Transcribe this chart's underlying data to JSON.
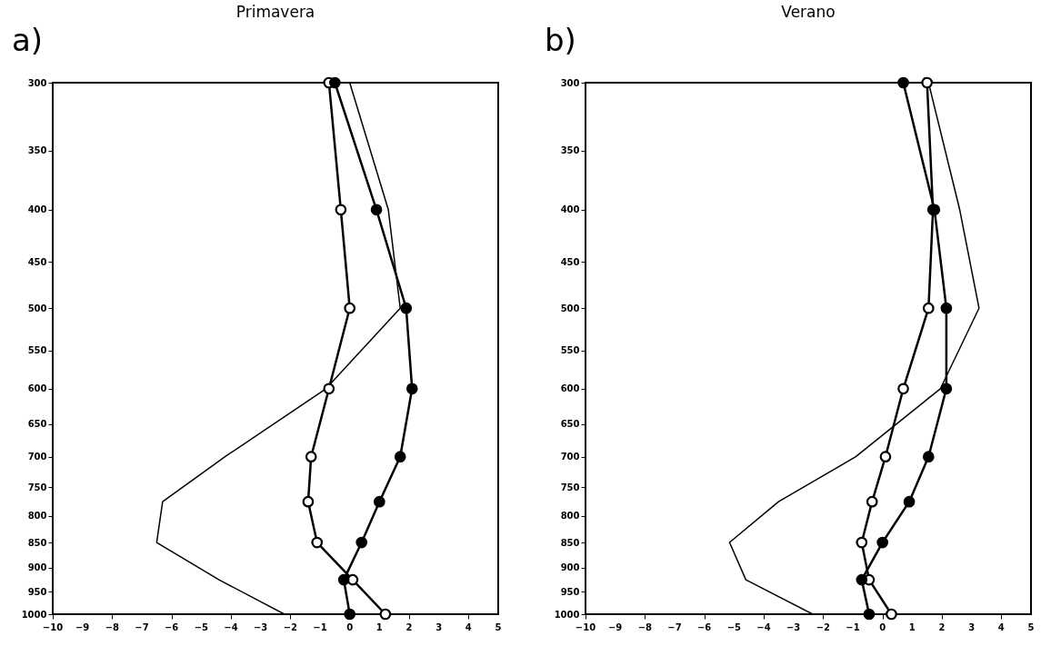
{
  "chart_data": [
    {
      "type": "line",
      "title": "a)",
      "subtitle": "Primavera",
      "series": [
        {
          "color": "#000000",
          "marker": "circle",
          "x": [
            -0.5,
            0.9,
            1.9,
            2.1,
            1.7,
            1.0,
            0.4,
            -0.2,
            0.0
          ],
          "values": [
            300,
            400,
            500,
            600,
            700,
            775,
            850,
            925,
            1000
          ]
        },
        {
          "color": "#000000",
          "marker": "circle",
          "x": [
            -0.7,
            -0.3,
            0.0,
            -0.7,
            -1.3,
            -1.4,
            -1.1,
            0.1,
            1.2
          ],
          "values": [
            300,
            400,
            500,
            600,
            700,
            775,
            850,
            925,
            1000
          ]
        },
        {
          "color": "#000000",
          "marker": "none",
          "x": [
            0.0,
            1.3,
            1.7,
            -0.8,
            -4.2,
            -6.3,
            -6.5,
            -4.4,
            -2.2
          ],
          "values": [
            300,
            400,
            500,
            600,
            700,
            775,
            850,
            925,
            1000
          ]
        }
      ],
      "xlim": [
        -10,
        5
      ],
      "xticks": [
        -10,
        -9,
        -8,
        -7,
        -6,
        -5,
        -4,
        -3,
        -2,
        -1,
        0,
        1,
        2,
        3,
        4,
        5
      ],
      "ylim": [
        1000,
        300
      ],
      "yticks": [
        300,
        350,
        400,
        450,
        500,
        550,
        600,
        650,
        700,
        750,
        800,
        850,
        900,
        950,
        1000
      ],
      "log": "y",
      "grid": false,
      "legend": false
    },
    {
      "type": "line",
      "title": "b)",
      "subtitle": "Verano",
      "series": [
        {
          "color": "#000000",
          "marker": "circle",
          "x": [
            0.7,
            1.75,
            2.15,
            2.15,
            1.55,
            0.9,
            0.0,
            -0.7,
            -0.45
          ],
          "values": [
            300,
            400,
            500,
            600,
            700,
            775,
            850,
            925,
            1000
          ]
        },
        {
          "color": "#000000",
          "marker": "circle",
          "x": [
            1.5,
            1.7,
            1.55,
            0.7,
            0.1,
            -0.35,
            -0.7,
            -0.45,
            0.3
          ],
          "values": [
            300,
            400,
            500,
            600,
            700,
            775,
            850,
            925,
            1000
          ]
        },
        {
          "color": "#000000",
          "marker": "none",
          "x": [
            1.55,
            2.6,
            3.25,
            1.95,
            -0.9,
            -3.5,
            -5.15,
            -4.6,
            -2.35
          ],
          "values": [
            300,
            400,
            500,
            600,
            700,
            775,
            850,
            925,
            1000
          ]
        }
      ],
      "xlim": [
        -10,
        5
      ],
      "xticks": [
        -10,
        -9,
        -8,
        -7,
        -6,
        -5,
        -4,
        -3,
        -2,
        -1,
        0,
        1,
        2,
        3,
        4,
        5
      ],
      "ylim": [
        1000,
        300
      ],
      "yticks": [
        300,
        350,
        400,
        450,
        500,
        550,
        600,
        650,
        700,
        750,
        800,
        850,
        900,
        950,
        1000
      ],
      "log": "y",
      "grid": false,
      "legend": false
    }
  ]
}
